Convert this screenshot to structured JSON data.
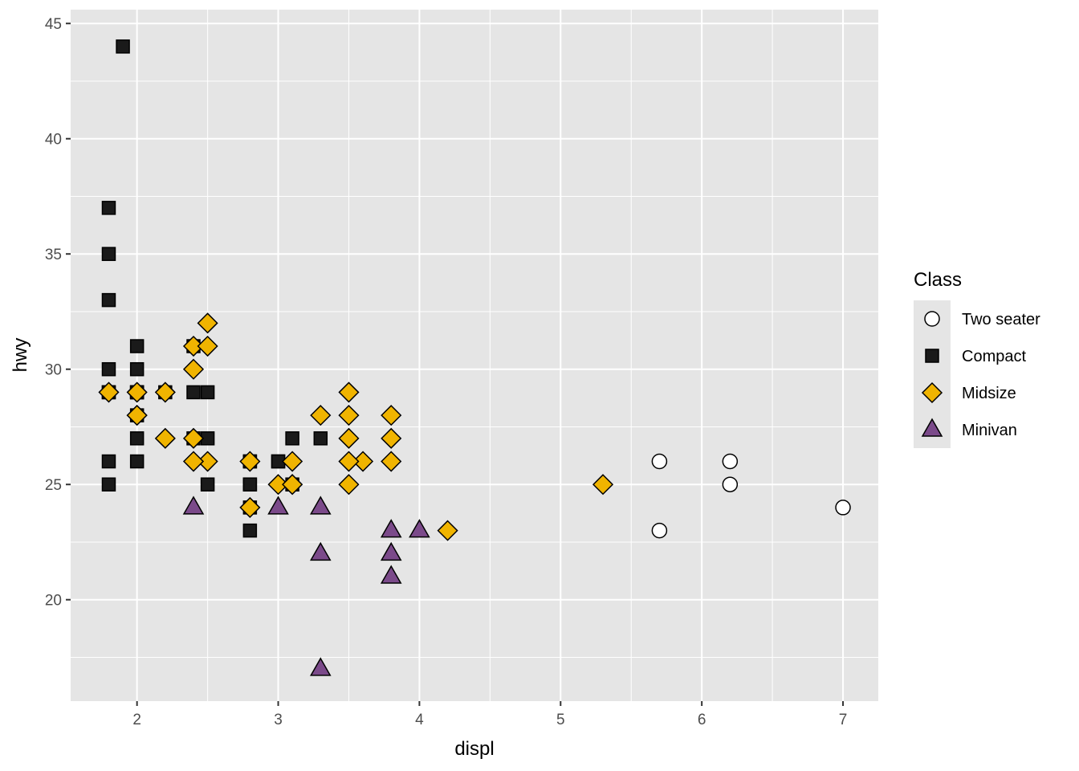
{
  "chart_data": {
    "type": "scatter",
    "title": "",
    "xlabel": "displ",
    "ylabel": "hwy",
    "xlim": [
      1.53,
      7.25
    ],
    "ylim": [
      15.6,
      45.6
    ],
    "x_ticks": [
      2,
      3,
      4,
      5,
      6,
      7
    ],
    "y_ticks": [
      20,
      25,
      30,
      35,
      40,
      45
    ],
    "grid": true,
    "legend": {
      "title": "Class",
      "position": "right"
    },
    "series": [
      {
        "name": "Two seater",
        "shape": "circle",
        "fill": "#ffffff",
        "points": [
          [
            5.7,
            26
          ],
          [
            5.7,
            23
          ],
          [
            6.2,
            26
          ],
          [
            6.2,
            25
          ],
          [
            7.0,
            24
          ]
        ]
      },
      {
        "name": "Compact",
        "shape": "square",
        "fill": "#1a1a1a",
        "points": [
          [
            1.8,
            29
          ],
          [
            1.8,
            29
          ],
          [
            2.0,
            31
          ],
          [
            2.0,
            30
          ],
          [
            2.8,
            26
          ],
          [
            2.8,
            26
          ],
          [
            3.1,
            27
          ],
          [
            1.8,
            26
          ],
          [
            1.8,
            25
          ],
          [
            2.0,
            28
          ],
          [
            2.0,
            27
          ],
          [
            2.8,
            25
          ],
          [
            2.8,
            25
          ],
          [
            3.1,
            25
          ],
          [
            1.9,
            44
          ],
          [
            2.0,
            29
          ],
          [
            2.0,
            26
          ],
          [
            2.0,
            29
          ],
          [
            2.0,
            29
          ],
          [
            2.5,
            29
          ],
          [
            2.5,
            27
          ],
          [
            2.2,
            29
          ],
          [
            2.4,
            31
          ],
          [
            3.0,
            26
          ],
          [
            3.3,
            27
          ],
          [
            1.8,
            33
          ],
          [
            1.8,
            35
          ],
          [
            1.8,
            37
          ],
          [
            1.8,
            30
          ],
          [
            2.0,
            29
          ],
          [
            2.5,
            25
          ],
          [
            2.8,
            24
          ],
          [
            2.8,
            23
          ],
          [
            2.4,
            27
          ],
          [
            2.4,
            29
          ],
          [
            3.0,
            26
          ]
        ]
      },
      {
        "name": "Midsize",
        "shape": "diamond",
        "fill": "#f0b400",
        "points": [
          [
            1.8,
            29
          ],
          [
            2.0,
            29
          ],
          [
            2.0,
            28
          ],
          [
            2.8,
            26
          ],
          [
            3.1,
            25
          ],
          [
            4.2,
            23
          ],
          [
            2.4,
            30
          ],
          [
            2.4,
            31
          ],
          [
            3.1,
            26
          ],
          [
            3.5,
            29
          ],
          [
            3.6,
            26
          ],
          [
            2.4,
            27
          ],
          [
            3.0,
            25
          ],
          [
            3.3,
            28
          ],
          [
            3.8,
            26
          ],
          [
            3.8,
            28
          ],
          [
            3.8,
            27
          ],
          [
            5.3,
            25
          ],
          [
            2.2,
            27
          ],
          [
            2.5,
            32
          ],
          [
            2.5,
            31
          ],
          [
            2.5,
            26
          ],
          [
            3.5,
            28
          ],
          [
            3.5,
            26
          ],
          [
            3.5,
            25
          ],
          [
            3.5,
            27
          ],
          [
            2.4,
            26
          ],
          [
            3.1,
            25
          ],
          [
            2.2,
            29
          ],
          [
            2.8,
            24
          ],
          [
            2.0,
            28
          ]
        ]
      },
      {
        "name": "Minivan",
        "shape": "triangle",
        "fill": "#7b4a8a",
        "points": [
          [
            2.4,
            24
          ],
          [
            3.0,
            24
          ],
          [
            3.3,
            24
          ],
          [
            3.3,
            22
          ],
          [
            3.3,
            17
          ],
          [
            3.8,
            22
          ],
          [
            3.8,
            21
          ],
          [
            3.8,
            23
          ],
          [
            4.0,
            23
          ]
        ]
      }
    ]
  }
}
